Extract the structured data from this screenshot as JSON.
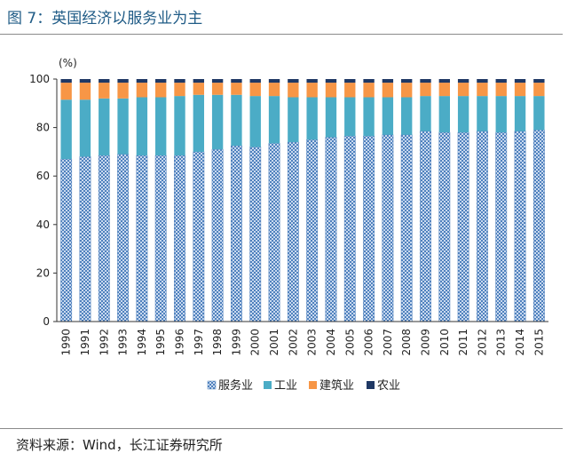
{
  "title": "图 7：英国经济以服务业为主",
  "source": "资料来源：Wind，长江证券研究所",
  "colors": {
    "services": "#4f81bd",
    "industry": "#4bacc6",
    "construction": "#f79646",
    "agriculture": "#1f3864"
  },
  "chart_data": {
    "type": "bar",
    "stacked": true,
    "unit_label": "(%)",
    "ylim": [
      0,
      100
    ],
    "yticks": [
      "0",
      "20",
      "40",
      "60",
      "80",
      "100"
    ],
    "categories": [
      "1990",
      "1991",
      "1992",
      "1993",
      "1994",
      "1995",
      "1996",
      "1997",
      "1998",
      "1999",
      "2000",
      "2001",
      "2002",
      "2003",
      "2004",
      "2005",
      "2006",
      "2007",
      "2008",
      "2009",
      "2010",
      "2011",
      "2012",
      "2013",
      "2014",
      "2015"
    ],
    "series": [
      {
        "name": "服务业",
        "values": [
          67,
          68,
          68.5,
          69,
          68.5,
          68.5,
          68.5,
          70,
          71,
          72.5,
          72,
          73.5,
          74,
          75,
          76,
          76.5,
          76.5,
          77,
          77,
          78.5,
          78,
          78,
          78.5,
          78,
          78.5,
          79
        ]
      },
      {
        "name": "工业",
        "values": [
          24.5,
          23.5,
          23.5,
          23,
          24,
          24,
          24.5,
          23.5,
          22.5,
          21,
          21,
          19.5,
          18.5,
          17.5,
          16.5,
          16,
          16,
          15.5,
          15.5,
          14.5,
          15,
          15,
          14.5,
          15,
          14.5,
          14
        ]
      },
      {
        "name": "建筑业",
        "values": [
          7,
          7,
          6.5,
          6.5,
          6,
          6,
          5.5,
          5,
          5,
          5,
          5.5,
          5.5,
          6,
          6,
          6,
          6,
          6,
          6,
          6,
          5.5,
          5.5,
          5.5,
          5.5,
          5.5,
          5.5,
          5.5
        ]
      },
      {
        "name": "农业",
        "values": [
          1.5,
          1.5,
          1.5,
          1.5,
          1.5,
          1.5,
          1.5,
          1.5,
          1.5,
          1.5,
          1.5,
          1.5,
          1.5,
          1.5,
          1.5,
          1.5,
          1.5,
          1.5,
          1.5,
          1.5,
          1.5,
          1.5,
          1.5,
          1.5,
          1.5,
          1.5
        ]
      }
    ]
  }
}
